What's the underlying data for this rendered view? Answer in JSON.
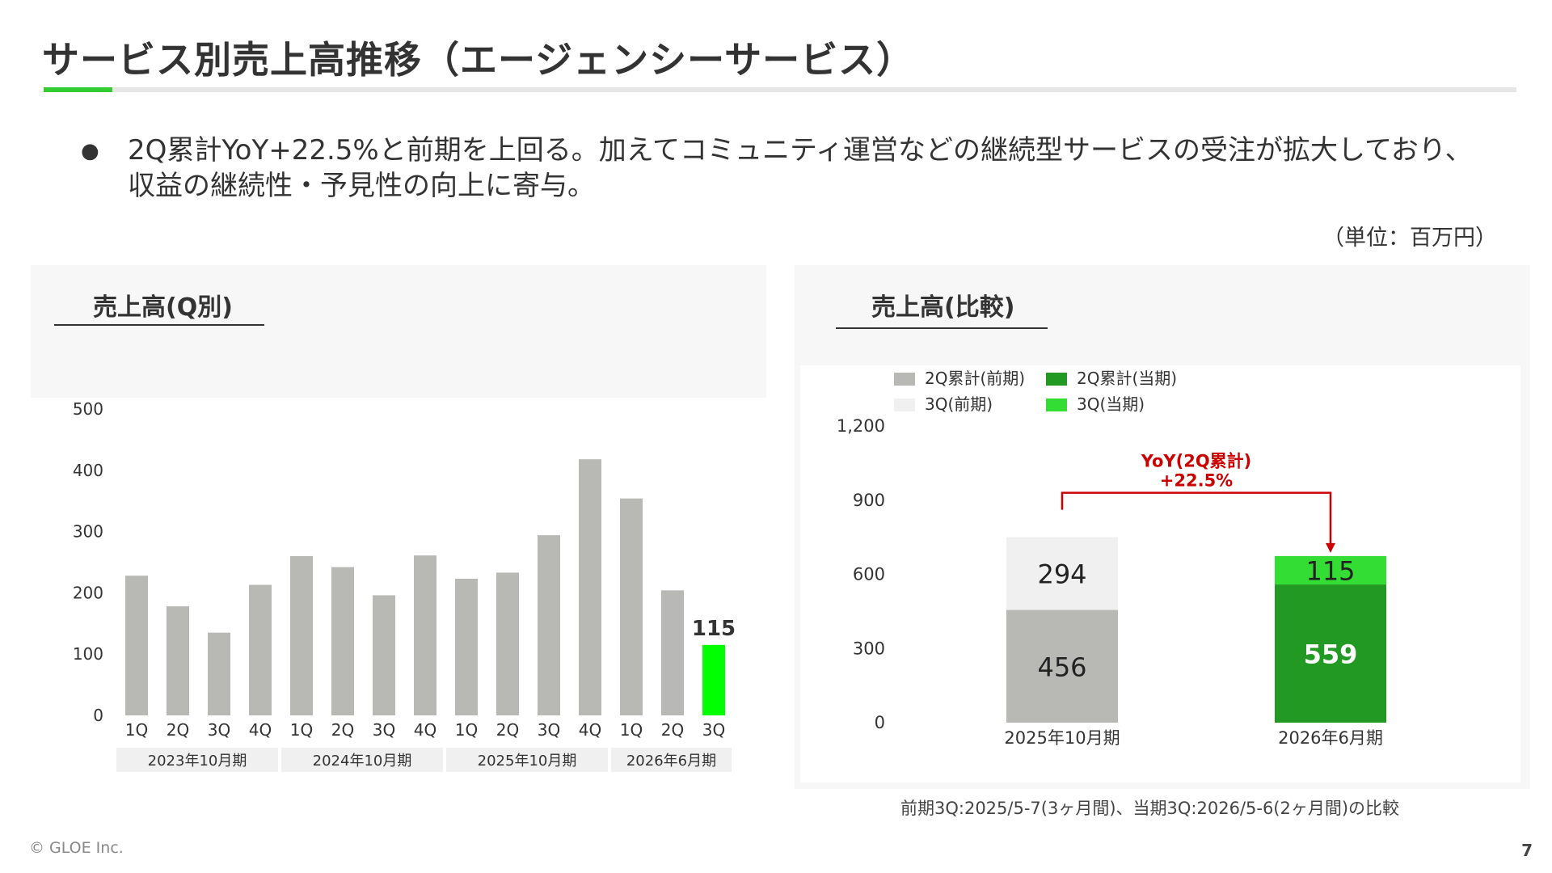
{
  "header": {
    "title": "サービス別売上高推移（エージェンシーサービス）"
  },
  "summary": {
    "bullet_symbol": "●",
    "text": "2Q累計YoY+22.5%と前期を上回る。加えてコミュニティ運営などの継続型サービスの受注が拡大しており、収益の継続性・予見性の向上に寄与。",
    "unit": "（単位：百万円）"
  },
  "colors": {
    "accent_green": "#33cc33",
    "bar_gray": "#b8b8b4",
    "bar_light_gray": "#f0f0f0",
    "bar_dark_green": "#229922",
    "bar_bright_green": "#33dd33",
    "highlight_green": "#00ff00",
    "yoy_red": "#cc0000"
  },
  "chart_data": [
    {
      "type": "bar",
      "title": "売上高(Q別)",
      "categories": [
        "1Q",
        "2Q",
        "3Q",
        "4Q",
        "1Q",
        "2Q",
        "3Q",
        "4Q",
        "1Q",
        "2Q",
        "3Q",
        "4Q",
        "1Q",
        "2Q",
        "3Q"
      ],
      "groups": [
        {
          "label": "2023年10月期",
          "count": 4
        },
        {
          "label": "2024年10月期",
          "count": 4
        },
        {
          "label": "2025年10月期",
          "count": 4
        },
        {
          "label": "2026年6月期",
          "count": 3
        }
      ],
      "values": [
        228,
        178,
        135,
        213,
        260,
        242,
        196,
        261,
        223,
        233,
        294,
        418,
        354,
        204,
        115
      ],
      "highlight_index": 14,
      "highlight_label": "115",
      "ylim": [
        0,
        500
      ],
      "yticks": [
        0,
        100,
        200,
        300,
        400,
        500
      ],
      "grid": false
    },
    {
      "type": "bar",
      "stacked": true,
      "title": "売上高(比較)",
      "categories": [
        "2025年10月期",
        "2026年6月期"
      ],
      "series": [
        {
          "name": "2Q累計(前期)",
          "values": [
            456,
            null
          ],
          "color": "#b8b8b4"
        },
        {
          "name": "3Q(前期)",
          "values": [
            294,
            null
          ],
          "color": "#f0f0f0"
        },
        {
          "name": "2Q累計(当期)",
          "values": [
            null,
            559
          ],
          "color": "#229922"
        },
        {
          "name": "3Q(当期)",
          "values": [
            null,
            115
          ],
          "color": "#33dd33"
        }
      ],
      "ylim": [
        0,
        1200
      ],
      "yticks": [
        "0",
        "300",
        "600",
        "900",
        "1,200"
      ],
      "legend": "top-left",
      "annotation": {
        "line1": "YoY(2Q累計)",
        "line2": "+22.5%"
      },
      "grid": false
    }
  ],
  "footer": {
    "note": "前期3Q:2025/5-7(3ヶ月間)、当期3Q:2026/5-6(2ヶ月間)の比較",
    "copyright": "© GLOE Inc.",
    "page": "7"
  }
}
